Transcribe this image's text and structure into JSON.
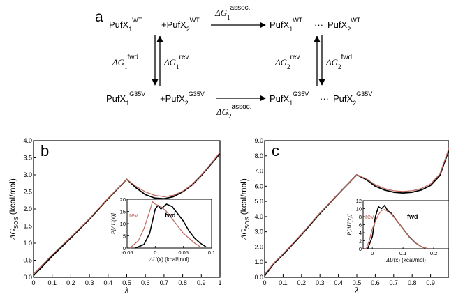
{
  "scheme": {
    "label": "a",
    "tl": {
      "main": "PufX",
      "sub": "1",
      "sup": "WT"
    },
    "plus_tl": {
      "main": "+PufX",
      "sub": "2",
      "sup": "WT"
    },
    "tr1": {
      "main": "PufX",
      "sub": "1",
      "sup": "WT"
    },
    "tr_dots": "···",
    "tr2": {
      "main": "PufX",
      "sub": "2",
      "sup": "WT"
    },
    "bl": {
      "main": "PufX",
      "sub": "1",
      "sup": "G35V"
    },
    "plus_bl": {
      "main": "+PufX",
      "sub": "2",
      "sup": "G35V"
    },
    "br1": {
      "main": "PufX",
      "sub": "1",
      "sup": "G35V"
    },
    "br_dots": "···",
    "br2": {
      "main": "PufX",
      "sub": "2",
      "sup": "G35V"
    },
    "top_arrow": {
      "delta": "ΔG",
      "sub": "1",
      "sup": "assoc."
    },
    "bottom_arrow": {
      "delta": "ΔG",
      "sub": "2",
      "sup": "assoc."
    },
    "left_fwd": {
      "delta": "ΔG",
      "sub": "1",
      "sup": "fwd"
    },
    "left_rev": {
      "delta": "ΔG",
      "sub": "1",
      "sup": "rev"
    },
    "right_rev": {
      "delta": "ΔG",
      "sub": "2",
      "sup": "rev"
    },
    "right_fwd": {
      "delta": "ΔG",
      "sub": "2",
      "sup": "fwd"
    }
  },
  "colors": {
    "fwd": "#000000",
    "rev": "#c06a5e"
  },
  "chart_data": [
    {
      "panel": "b",
      "type": "line",
      "xlabel": "λ",
      "ylabel_main": "ΔG",
      "ylabel_sub": "SOS",
      "ylabel_unit": "(kcal/mol)",
      "xlim": [
        0,
        1
      ],
      "ylim": [
        0,
        4
      ],
      "xticks": [
        "0",
        "0.1",
        "0.2",
        "0.3",
        "0.4",
        "0.5",
        "0.6",
        "0.7",
        "0.8",
        "0.9",
        "1"
      ],
      "yticks": [
        "0.0",
        "0.5",
        "1.0",
        "1.5",
        "2.0",
        "2.5",
        "3.0",
        "3.5",
        "4.0"
      ],
      "series": [
        {
          "key": "fwd",
          "x": [
            0,
            0.05,
            0.1,
            0.2,
            0.3,
            0.4,
            0.5,
            0.55,
            0.6,
            0.65,
            0.7,
            0.75,
            0.8,
            0.85,
            0.9,
            0.95,
            1.0
          ],
          "y": [
            0.05,
            0.33,
            0.62,
            1.15,
            1.7,
            2.3,
            2.87,
            2.62,
            2.42,
            2.32,
            2.3,
            2.36,
            2.5,
            2.7,
            2.98,
            3.3,
            3.62
          ]
        },
        {
          "key": "rev",
          "x": [
            0,
            0.05,
            0.1,
            0.2,
            0.3,
            0.4,
            0.5,
            0.55,
            0.6,
            0.65,
            0.7,
            0.75,
            0.8,
            0.85,
            0.9,
            0.95,
            1.0
          ],
          "y": [
            0.1,
            0.38,
            0.66,
            1.18,
            1.72,
            2.32,
            2.87,
            2.66,
            2.5,
            2.4,
            2.36,
            2.4,
            2.52,
            2.72,
            3.0,
            3.32,
            3.66
          ]
        }
      ],
      "inset": {
        "xlabel_left": "ΔU",
        "xlabel_right": "(x) (kcal/mol)",
        "ylabel": "P[ΔU(x)]",
        "xlim": [
          -0.05,
          0.1
        ],
        "ylim": [
          0,
          20
        ],
        "xticks": [
          "-0.05",
          "0",
          "0.05",
          "0.1"
        ],
        "xtick_values": [
          -0.05,
          0,
          0.05,
          0.1
        ],
        "yticks": [
          "0",
          "5",
          "10",
          "15",
          "20"
        ],
        "label_rev": "rev",
        "label_fwd": "fwd",
        "series": [
          {
            "key": "fwd",
            "x": [
              -0.035,
              -0.02,
              -0.01,
              0,
              0.005,
              0.01,
              0.02,
              0.03,
              0.04,
              0.05,
              0.06,
              0.07,
              0.08,
              0.09
            ],
            "y": [
              0,
              1.5,
              6,
              16,
              17.5,
              16,
              18,
              17,
              14,
              11,
              7,
              4,
              2,
              0.5
            ]
          },
          {
            "key": "rev",
            "x": [
              -0.045,
              -0.03,
              -0.02,
              -0.01,
              -0.005,
              0,
              0.01,
              0.02,
              0.03,
              0.04,
              0.05,
              0.06,
              0.07,
              0.08
            ],
            "y": [
              0,
              3,
              8,
              15,
              19,
              18,
              17,
              15,
              12,
              9,
              6,
              4,
              2,
              0.5
            ]
          }
        ]
      }
    },
    {
      "panel": "c",
      "type": "line",
      "xlabel": "λ",
      "ylabel_main": "ΔG",
      "ylabel_sub": "SOS",
      "ylabel_unit": "(kcal/mol)",
      "xlim": [
        0,
        1
      ],
      "ylim": [
        0,
        9
      ],
      "xticks": [
        "0",
        "0.1",
        "0.2",
        "0.3",
        "0.4",
        "0.5",
        "0.6",
        "0.7",
        "0.8",
        "0.9"
      ],
      "yticks": [
        "0.0",
        "1.0",
        "2.0",
        "3.0",
        "4.0",
        "5.0",
        "6.0",
        "7.0",
        "8.0",
        "9.0"
      ],
      "series": [
        {
          "key": "fwd",
          "x": [
            0,
            0.05,
            0.1,
            0.2,
            0.3,
            0.4,
            0.5,
            0.55,
            0.6,
            0.65,
            0.7,
            0.75,
            0.8,
            0.85,
            0.9,
            0.95,
            1.0
          ],
          "y": [
            0.1,
            0.9,
            1.5,
            2.8,
            4.2,
            5.5,
            6.75,
            6.45,
            6.0,
            5.75,
            5.6,
            5.55,
            5.6,
            5.75,
            6.05,
            6.7,
            8.4
          ]
        },
        {
          "key": "rev",
          "x": [
            0,
            0.05,
            0.1,
            0.2,
            0.3,
            0.4,
            0.5,
            0.55,
            0.6,
            0.65,
            0.7,
            0.75,
            0.8,
            0.85,
            0.9,
            0.95,
            1.0
          ],
          "y": [
            0.2,
            0.95,
            1.55,
            2.85,
            4.25,
            5.5,
            6.75,
            6.5,
            6.1,
            5.85,
            5.7,
            5.65,
            5.7,
            5.85,
            6.15,
            6.8,
            8.5
          ]
        }
      ],
      "inset": {
        "xlabel_left": "ΔU",
        "xlabel_right": "(x) (kcal/mol)",
        "ylabel": "P[ΔU(x)]",
        "xlim": [
          -0.03,
          0.25
        ],
        "ylim": [
          0,
          12
        ],
        "xticks": [
          "0",
          "0.1",
          "0.2"
        ],
        "xtick_values": [
          0,
          0.1,
          0.2
        ],
        "yticks": [
          "0",
          "2",
          "4",
          "6",
          "8",
          "10",
          "12"
        ],
        "label_rev": "rev",
        "label_fwd": "fwd",
        "series": [
          {
            "key": "fwd",
            "x": [
              -0.015,
              0,
              0.01,
              0.02,
              0.03,
              0.04,
              0.05,
              0.06,
              0.08,
              0.1,
              0.12,
              0.14,
              0.16,
              0.18
            ],
            "y": [
              0,
              3,
              8,
              10.5,
              10,
              10.8,
              9.5,
              9,
              7,
              5,
              3,
              1.5,
              0.5,
              0
            ]
          },
          {
            "key": "rev",
            "x": [
              -0.02,
              -0.01,
              0,
              0.02,
              0.03,
              0.04,
              0.06,
              0.08,
              0.1,
              0.12,
              0.14,
              0.16,
              0.18
            ],
            "y": [
              0,
              2,
              5,
              8.5,
              9.5,
              9.8,
              8.8,
              7,
              5,
              3,
              1.5,
              0.5,
              0
            ]
          }
        ]
      }
    }
  ]
}
